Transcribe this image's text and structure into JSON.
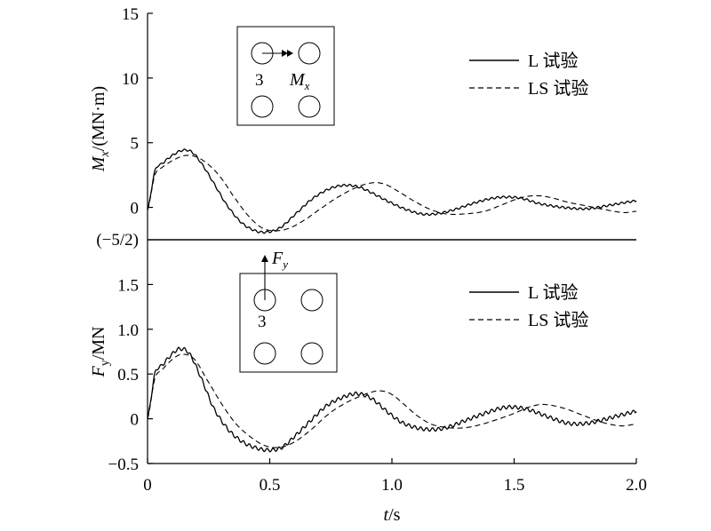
{
  "chart_data": [
    {
      "type": "line",
      "panel": "top",
      "ylabel_main": "M",
      "ylabel_sub": "x",
      "ylabel_rest": "/(MN·m)",
      "ylim": [
        -2.5,
        15
      ],
      "xlim": [
        0,
        2.0
      ],
      "yticks": [
        "15",
        "10",
        "5",
        "0"
      ],
      "ytick_values": [
        15,
        10,
        5,
        0
      ],
      "bottom_tick_label": "(−5/2)",
      "legend_placement": "top-right",
      "inset": {
        "pile_label": "3",
        "arrow_label_main": "M",
        "arrow_label_sub": "x"
      },
      "series": [
        {
          "name": "L 试验",
          "style": "solid",
          "x": [
            0,
            0.03,
            0.06,
            0.1,
            0.14,
            0.18,
            0.22,
            0.27,
            0.32,
            0.38,
            0.44,
            0.49,
            0.54,
            0.6,
            0.67,
            0.74,
            0.8,
            0.86,
            0.92,
            0.98,
            1.05,
            1.12,
            1.18,
            1.25,
            1.33,
            1.41,
            1.47,
            1.53,
            1.6,
            1.7,
            1.8,
            1.9,
            2.0
          ],
          "y": [
            -0.2,
            2.8,
            3.4,
            4.0,
            4.4,
            4.3,
            3.4,
            1.9,
            0.3,
            -1.1,
            -1.8,
            -1.9,
            -1.6,
            -0.6,
            0.6,
            1.4,
            1.7,
            1.6,
            1.1,
            0.5,
            -0.1,
            -0.5,
            -0.5,
            -0.2,
            0.3,
            0.7,
            0.8,
            0.7,
            0.3,
            0.0,
            -0.1,
            0.2,
            0.5
          ]
        },
        {
          "name": "LS 试验",
          "style": "dashed",
          "x": [
            0,
            0.03,
            0.06,
            0.1,
            0.15,
            0.2,
            0.25,
            0.3,
            0.35,
            0.41,
            0.47,
            0.53,
            0.58,
            0.64,
            0.7,
            0.77,
            0.85,
            0.92,
            0.97,
            1.02,
            1.08,
            1.15,
            1.22,
            1.3,
            1.38,
            1.45,
            1.52,
            1.58,
            1.64,
            1.72,
            1.8,
            1.88,
            1.95,
            2.0
          ],
          "y": [
            -0.2,
            2.5,
            3.1,
            3.6,
            4.0,
            3.9,
            3.3,
            2.3,
            0.9,
            -0.6,
            -1.6,
            -1.8,
            -1.6,
            -1.0,
            -0.2,
            0.7,
            1.5,
            1.9,
            1.8,
            1.3,
            0.6,
            -0.1,
            -0.5,
            -0.5,
            -0.3,
            0.2,
            0.7,
            0.9,
            0.8,
            0.4,
            0.1,
            -0.2,
            -0.4,
            -0.3
          ]
        }
      ]
    },
    {
      "type": "line",
      "panel": "bottom",
      "ylabel_main": "F",
      "ylabel_sub": "y",
      "ylabel_rest": "/MN",
      "ylim": [
        -0.5,
        2.0
      ],
      "xlim": [
        0,
        2.0
      ],
      "yticks": [
        "1.5",
        "1.0",
        "0.5",
        "0",
        "−0.5"
      ],
      "ytick_values": [
        1.5,
        1.0,
        0.5,
        0,
        -0.5
      ],
      "xlabel_main": "t",
      "xlabel_rest": "/s",
      "xticks": [
        "0",
        "0.5",
        "1.0",
        "1.5",
        "2.0"
      ],
      "xtick_values": [
        0,
        0.5,
        1.0,
        1.5,
        2.0
      ],
      "legend_placement": "top-right",
      "inset": {
        "pile_label": "3",
        "arrow_label_main": "F",
        "arrow_label_sub": "y"
      },
      "series": [
        {
          "name": "L 试验",
          "style": "solid",
          "x": [
            0,
            0.03,
            0.06,
            0.1,
            0.13,
            0.17,
            0.22,
            0.27,
            0.33,
            0.39,
            0.45,
            0.5,
            0.55,
            0.6,
            0.66,
            0.73,
            0.8,
            0.86,
            0.92,
            0.98,
            1.04,
            1.1,
            1.16,
            1.22,
            1.3,
            1.38,
            1.45,
            1.5,
            1.56,
            1.63,
            1.72,
            1.8,
            1.88,
            1.95,
            2.0
          ],
          "y": [
            0.0,
            0.5,
            0.6,
            0.72,
            0.78,
            0.73,
            0.45,
            0.12,
            -0.12,
            -0.26,
            -0.33,
            -0.35,
            -0.32,
            -0.2,
            -0.04,
            0.14,
            0.24,
            0.28,
            0.22,
            0.08,
            -0.04,
            -0.1,
            -0.12,
            -0.1,
            -0.02,
            0.06,
            0.12,
            0.13,
            0.1,
            0.03,
            -0.05,
            -0.05,
            0.0,
            0.05,
            0.08
          ]
        },
        {
          "name": "LS 试验",
          "style": "dashed",
          "x": [
            0,
            0.03,
            0.06,
            0.1,
            0.14,
            0.19,
            0.24,
            0.3,
            0.36,
            0.42,
            0.48,
            0.54,
            0.6,
            0.67,
            0.74,
            0.8,
            0.86,
            0.92,
            0.96,
            1.0,
            1.05,
            1.1,
            1.16,
            1.23,
            1.3,
            1.37,
            1.44,
            1.5,
            1.56,
            1.62,
            1.7,
            1.78,
            1.86,
            1.94,
            2.0
          ],
          "y": [
            0.0,
            0.45,
            0.55,
            0.66,
            0.72,
            0.67,
            0.45,
            0.18,
            -0.05,
            -0.2,
            -0.3,
            -0.32,
            -0.26,
            -0.12,
            0.05,
            0.16,
            0.24,
            0.3,
            0.31,
            0.27,
            0.16,
            0.04,
            -0.06,
            -0.1,
            -0.1,
            -0.06,
            0.0,
            0.06,
            0.13,
            0.16,
            0.12,
            0.04,
            -0.04,
            -0.08,
            -0.06
          ]
        }
      ]
    }
  ]
}
